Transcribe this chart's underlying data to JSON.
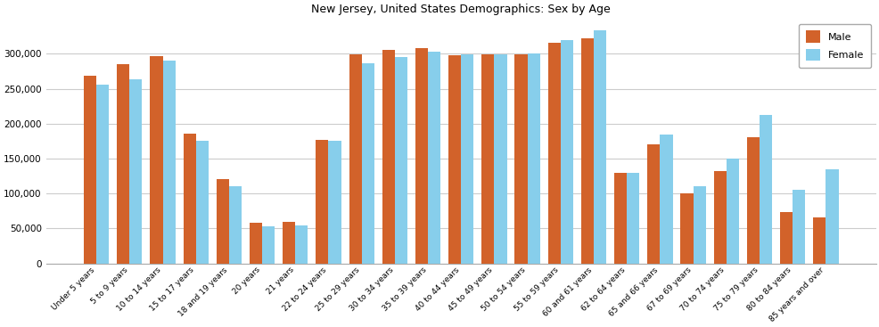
{
  "title": "New Jersey, United States Demographics: Sex by Age",
  "categories": [
    "Under 5 years",
    "5 to 9 years",
    "10 to 14 years",
    "15 to 17 years",
    "18 and 19 years",
    "20 years",
    "21 years",
    "22 to 24 years",
    "25 to 29 years",
    "30 to 34 years",
    "35 to 39 years",
    "40 to 44 years",
    "45 to 49 years",
    "50 to 54 years",
    "55 to 59 years",
    "60 and 61 years",
    "62 to 64 years",
    "65 and 66 years",
    "67 to 69 years",
    "70 to 74 years",
    "75 to 79 years",
    "80 to 84 years",
    "85 years and over"
  ],
  "male": [
    269000,
    285000,
    296000,
    185000,
    120000,
    58000,
    59000,
    177000,
    299000,
    305000,
    308000,
    298000,
    299000,
    299000,
    316000,
    322000,
    129000,
    170000,
    100000,
    132000,
    180000,
    73000,
    66000
  ],
  "female": [
    256000,
    264000,
    290000,
    175000,
    111000,
    53000,
    54000,
    175000,
    286000,
    295000,
    303000,
    299000,
    299000,
    300000,
    320000,
    333000,
    129000,
    184000,
    111000,
    150000,
    212000,
    105000,
    134000
  ],
  "male_color": "#d2622a",
  "female_color": "#87ceeb",
  "ylim": [
    0,
    350000
  ],
  "yticks": [
    0,
    50000,
    100000,
    150000,
    200000,
    250000,
    300000
  ],
  "background_color": "#ffffff",
  "legend_labels": [
    "Male",
    "Female"
  ]
}
